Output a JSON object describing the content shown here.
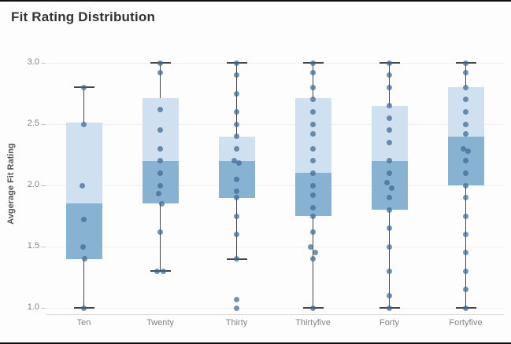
{
  "title": "Fit Rating Distribution",
  "chart_data": {
    "type": "boxplot",
    "title": "Fit Rating Distribution",
    "xlabel": "",
    "ylabel": "Avgerage Fit Rating",
    "ylim": [
      1.0,
      3.0
    ],
    "yticks": [
      3.0,
      2.5,
      2.0,
      1.5,
      1.0
    ],
    "grid": true,
    "legend": "none",
    "categories": [
      "Ten",
      "Twenty",
      "Thirty",
      "Thirtyfive",
      "Forty",
      "Fortyfive"
    ],
    "series": [
      {
        "category": "Ten",
        "whisker_low": 1.0,
        "q1": 1.4,
        "median": 1.85,
        "q3": 2.51,
        "whisker_high": 2.8,
        "points": [
          [
            2.8,
            0
          ],
          [
            2.5,
            0
          ],
          [
            2.0,
            -2
          ],
          [
            1.72,
            0
          ],
          [
            1.5,
            -1
          ],
          [
            1.4,
            1
          ],
          [
            1.0,
            0
          ]
        ]
      },
      {
        "category": "Twenty",
        "whisker_low": 1.3,
        "q1": 1.85,
        "median": 2.2,
        "q3": 2.71,
        "whisker_high": 3.0,
        "points": [
          [
            3.0,
            0
          ],
          [
            2.92,
            0
          ],
          [
            2.62,
            0
          ],
          [
            2.45,
            0
          ],
          [
            2.3,
            0
          ],
          [
            2.2,
            0
          ],
          [
            2.1,
            0
          ],
          [
            2.0,
            0
          ],
          [
            1.93,
            -2
          ],
          [
            1.85,
            2
          ],
          [
            1.62,
            0
          ],
          [
            1.3,
            -4
          ],
          [
            1.3,
            4
          ]
        ]
      },
      {
        "category": "Thirty",
        "whisker_low": 1.4,
        "q1": 1.9,
        "median": 2.2,
        "q3": 2.4,
        "whisker_high": 3.0,
        "points": [
          [
            3.0,
            0
          ],
          [
            2.9,
            0
          ],
          [
            2.75,
            0
          ],
          [
            2.6,
            0
          ],
          [
            2.5,
            0
          ],
          [
            2.4,
            0
          ],
          [
            2.3,
            0
          ],
          [
            2.2,
            -3
          ],
          [
            2.18,
            3
          ],
          [
            2.05,
            0
          ],
          [
            1.95,
            0
          ],
          [
            1.9,
            0
          ],
          [
            1.75,
            0
          ],
          [
            1.6,
            0
          ],
          [
            1.4,
            0
          ],
          [
            1.07,
            0
          ],
          [
            1.0,
            0
          ]
        ]
      },
      {
        "category": "Thirtyfive",
        "whisker_low": 1.0,
        "q1": 1.75,
        "median": 2.1,
        "q3": 2.71,
        "whisker_high": 3.0,
        "points": [
          [
            3.0,
            0
          ],
          [
            2.92,
            0
          ],
          [
            2.8,
            0
          ],
          [
            2.7,
            0
          ],
          [
            2.6,
            0
          ],
          [
            2.5,
            0
          ],
          [
            2.42,
            0
          ],
          [
            2.3,
            0
          ],
          [
            2.2,
            0
          ],
          [
            2.1,
            0
          ],
          [
            2.0,
            0
          ],
          [
            1.92,
            0
          ],
          [
            1.82,
            0
          ],
          [
            1.75,
            0
          ],
          [
            1.62,
            0
          ],
          [
            1.5,
            -3
          ],
          [
            1.45,
            3
          ],
          [
            1.4,
            0
          ],
          [
            1.0,
            0
          ]
        ]
      },
      {
        "category": "Forty",
        "whisker_low": 1.0,
        "q1": 1.8,
        "median": 2.2,
        "q3": 2.65,
        "whisker_high": 3.0,
        "points": [
          [
            3.0,
            0
          ],
          [
            2.9,
            0
          ],
          [
            2.8,
            0
          ],
          [
            2.65,
            0
          ],
          [
            2.55,
            0
          ],
          [
            2.45,
            0
          ],
          [
            2.35,
            0
          ],
          [
            2.2,
            0
          ],
          [
            2.1,
            0
          ],
          [
            2.02,
            -3
          ],
          [
            1.98,
            3
          ],
          [
            1.9,
            0
          ],
          [
            1.8,
            0
          ],
          [
            1.65,
            0
          ],
          [
            1.5,
            0
          ],
          [
            1.3,
            0
          ],
          [
            1.1,
            0
          ],
          [
            1.0,
            0
          ]
        ]
      },
      {
        "category": "Fortyfive",
        "whisker_low": 1.0,
        "q1": 2.0,
        "median": 2.4,
        "q3": 2.8,
        "whisker_high": 3.0,
        "points": [
          [
            3.0,
            0
          ],
          [
            2.92,
            0
          ],
          [
            2.8,
            0
          ],
          [
            2.7,
            0
          ],
          [
            2.6,
            0
          ],
          [
            2.5,
            0
          ],
          [
            2.42,
            0
          ],
          [
            2.3,
            -3
          ],
          [
            2.28,
            3
          ],
          [
            2.2,
            0
          ],
          [
            2.1,
            0
          ],
          [
            2.0,
            0
          ],
          [
            1.9,
            0
          ],
          [
            1.75,
            0
          ],
          [
            1.6,
            0
          ],
          [
            1.45,
            0
          ],
          [
            1.3,
            0
          ],
          [
            1.15,
            0
          ],
          [
            1.0,
            0
          ]
        ]
      }
    ],
    "colors": {
      "box_upper": "#cfe1f0",
      "box_lower": "#88b2d2",
      "dot": "rgba(62,104,146,0.72)",
      "whisker": "#464646",
      "grid": "#efefef",
      "axis_text": "#838383",
      "title_text": "#323232"
    }
  }
}
